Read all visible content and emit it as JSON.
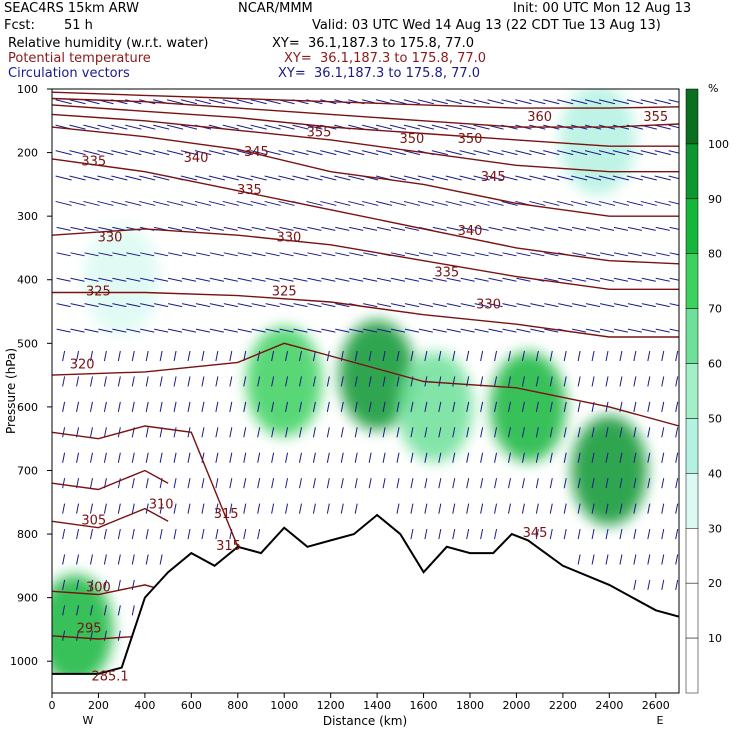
{
  "header": {
    "model": "SEAC4RS 15km ARW",
    "org": "NCAR/MMM",
    "init": "Init: 00 UTC Mon 12 Aug 13",
    "fcst_label": "Fcst:",
    "fcst_value": "51 h",
    "valid": "Valid: 03 UTC Wed 14 Aug 13 (22 CDT Tue 13 Aug 13)",
    "fields": [
      {
        "name": "Relative humidity (w.r.t. water)",
        "xy": "XY=  36.1,187.3 to 175.8, 77.0",
        "color": "#000000"
      },
      {
        "name": "Potential temperature",
        "xy": "XY=  36.1,187.3 to 175.8, 77.0",
        "color": "#8b1a1a"
      },
      {
        "name": "Circulation vectors",
        "xy": "XY=  36.1,187.3 to 175.8, 77.0",
        "color": "#1a1a8b"
      }
    ]
  },
  "chart_data": {
    "type": "heatmap",
    "title": "Relative humidity (w.r.t. water)",
    "xlabel": "Distance (km)",
    "ylabel": "Pressure (hPa)",
    "xlim": [
      0,
      2700
    ],
    "ylim": [
      1050,
      100
    ],
    "x_ticks": [
      "0",
      "200",
      "400",
      "600",
      "800",
      "1000",
      "1200",
      "1400",
      "1600",
      "1800",
      "2000",
      "2200",
      "2400",
      "2600"
    ],
    "y_ticks": [
      "100",
      "200",
      "300",
      "400",
      "500",
      "600",
      "700",
      "800",
      "900",
      "1000"
    ],
    "x_end_labels": {
      "left": "W",
      "right": "E"
    },
    "colorbar": {
      "unit": "%",
      "levels": [
        10,
        20,
        30,
        40,
        50,
        60,
        70,
        80,
        90,
        100
      ],
      "labels": [
        "10",
        "20",
        "30",
        "40",
        "50",
        "60",
        "70",
        "80",
        "90",
        "100"
      ],
      "colors": [
        "#ffffff",
        "#ffffff",
        "#ffffff",
        "#dcfaf2",
        "#b3f2e1",
        "#a3f0c8",
        "#6ee09a",
        "#3dd160",
        "#16b63c",
        "#0e9630",
        "#0a7020"
      ]
    },
    "rh_regions": [
      {
        "x": 1400,
        "p": 550,
        "rh": 90
      },
      {
        "x": 2050,
        "p": 600,
        "rh": 85
      },
      {
        "x": 2400,
        "p": 700,
        "rh": 90
      },
      {
        "x": 100,
        "p": 950,
        "rh": 80
      },
      {
        "x": 1000,
        "p": 560,
        "rh": 70
      },
      {
        "x": 1650,
        "p": 600,
        "rh": 65
      },
      {
        "x": 2350,
        "p": 180,
        "rh": 45
      },
      {
        "x": 300,
        "p": 400,
        "rh": 35
      }
    ],
    "theta_contours": [
      {
        "value": 295,
        "label": "295",
        "x": [
          0,
          200,
          400
        ],
        "p": [
          960,
          965,
          960
        ]
      },
      {
        "value": 300,
        "label": "300",
        "x": [
          0,
          200,
          400,
          500
        ],
        "p": [
          890,
          895,
          880,
          890
        ]
      },
      {
        "value": 305,
        "label": "305",
        "x": [
          0,
          200,
          400,
          500
        ],
        "p": [
          780,
          790,
          760,
          780
        ]
      },
      {
        "value": 310,
        "label": "310",
        "x": [
          0,
          200,
          400,
          500
        ],
        "p": [
          720,
          730,
          700,
          720
        ]
      },
      {
        "value": 315,
        "label": "315",
        "x": [
          0,
          200,
          400,
          600,
          800
        ],
        "p": [
          640,
          650,
          630,
          640,
          820
        ]
      },
      {
        "value": 320,
        "label": "320",
        "x": [
          0,
          400,
          800,
          1000,
          1200,
          1600,
          2000,
          2400,
          2700
        ],
        "p": [
          550,
          545,
          530,
          500,
          520,
          560,
          570,
          600,
          630
        ]
      },
      {
        "value": 325,
        "label": "325",
        "x": [
          0,
          400,
          800,
          1200,
          1600,
          2000,
          2400,
          2700
        ],
        "p": [
          420,
          420,
          425,
          435,
          455,
          470,
          490,
          490
        ]
      },
      {
        "value": 330,
        "label": "330",
        "x": [
          0,
          400,
          800,
          1200,
          1600,
          2000,
          2400,
          2700
        ],
        "p": [
          330,
          320,
          330,
          345,
          370,
          395,
          415,
          415
        ]
      },
      {
        "value": 335,
        "label": "335",
        "x": [
          0,
          400,
          800,
          1200,
          1600,
          2000,
          2400,
          2700
        ],
        "p": [
          210,
          230,
          260,
          290,
          320,
          350,
          370,
          375
        ]
      },
      {
        "value": 340,
        "label": "340",
        "x": [
          0,
          400,
          800,
          1200,
          1600,
          2000,
          2400,
          2700
        ],
        "p": [
          160,
          175,
          195,
          230,
          250,
          280,
          300,
          300
        ]
      },
      {
        "value": 345,
        "label": "345",
        "x": [
          0,
          400,
          800,
          1200,
          1600,
          2000,
          2400,
          2700
        ],
        "p": [
          140,
          150,
          165,
          180,
          200,
          220,
          230,
          230
        ]
      },
      {
        "value": 350,
        "label": "350",
        "x": [
          0,
          400,
          800,
          1200,
          1600,
          2000,
          2400,
          2700
        ],
        "p": [
          125,
          135,
          145,
          160,
          170,
          180,
          190,
          190
        ]
      },
      {
        "value": 355,
        "label": "355",
        "x": [
          0,
          400,
          800,
          1200,
          1600,
          2000,
          2400,
          2700
        ],
        "p": [
          115,
          120,
          130,
          140,
          150,
          160,
          160,
          155
        ]
      },
      {
        "value": 360,
        "label": "360",
        "x": [
          0,
          400,
          800,
          1200,
          1600,
          2000,
          2400,
          2700
        ],
        "p": [
          105,
          110,
          115,
          120,
          125,
          130,
          130,
          128
        ]
      }
    ],
    "terrain": {
      "x": [
        0,
        200,
        300,
        400,
        500,
        600,
        700,
        800,
        900,
        1000,
        1100,
        1200,
        1300,
        1400,
        1500,
        1600,
        1700,
        1800,
        1900,
        1980,
        2050,
        2200,
        2400,
        2600,
        2700
      ],
      "p": [
        1020,
        1020,
        1010,
        900,
        860,
        830,
        850,
        820,
        830,
        790,
        820,
        810,
        800,
        770,
        800,
        860,
        820,
        830,
        830,
        800,
        810,
        850,
        880,
        920,
        930
      ]
    },
    "contour_labels": [
      {
        "text": "335",
        "x": 180,
        "p": 220
      },
      {
        "text": "340",
        "x": 620,
        "p": 215
      },
      {
        "text": "345",
        "x": 880,
        "p": 205
      },
      {
        "text": "355",
        "x": 1150,
        "p": 175
      },
      {
        "text": "350",
        "x": 1550,
        "p": 185
      },
      {
        "text": "350",
        "x": 1800,
        "p": 185
      },
      {
        "text": "345",
        "x": 1900,
        "p": 245
      },
      {
        "text": "360",
        "x": 2100,
        "p": 150
      },
      {
        "text": "355",
        "x": 2600,
        "p": 150
      },
      {
        "text": "335",
        "x": 850,
        "p": 265
      },
      {
        "text": "330",
        "x": 1020,
        "p": 340
      },
      {
        "text": "340",
        "x": 1800,
        "p": 330
      },
      {
        "text": "330",
        "x": 250,
        "p": 340
      },
      {
        "text": "335",
        "x": 1700,
        "p": 395
      },
      {
        "text": "325",
        "x": 1000,
        "p": 425
      },
      {
        "text": "330",
        "x": 1880,
        "p": 445
      },
      {
        "text": "325",
        "x": 200,
        "p": 425
      },
      {
        "text": "320",
        "x": 130,
        "p": 540
      },
      {
        "text": "310",
        "x": 470,
        "p": 760
      },
      {
        "text": "315",
        "x": 750,
        "p": 775
      },
      {
        "text": "315",
        "x": 760,
        "p": 825
      },
      {
        "text": "305",
        "x": 180,
        "p": 785
      },
      {
        "text": "345",
        "x": 2080,
        "p": 805
      },
      {
        "text": "300",
        "x": 200,
        "p": 890
      },
      {
        "text": "295",
        "x": 160,
        "p": 955
      },
      {
        "text": "285.1",
        "x": 250,
        "p": 1030
      }
    ]
  }
}
